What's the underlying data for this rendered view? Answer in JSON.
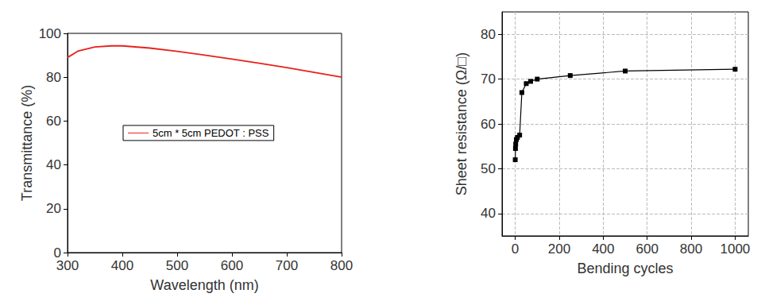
{
  "chart_data": [
    {
      "type": "line",
      "x_label": "Wavelength (nm)",
      "y_label": "Transmittance (%)",
      "xlim": [
        300,
        800
      ],
      "xticks": [
        300,
        400,
        500,
        600,
        700,
        800
      ],
      "ylim": [
        0,
        100
      ],
      "yticks": [
        0,
        20,
        40,
        60,
        80,
        100
      ],
      "grid": false,
      "legend": "center",
      "series": [
        {
          "name": "5cm * 5cm PEDOT : PSS",
          "color": "#e8211b",
          "line_style": "solid",
          "x": [
            300,
            320,
            350,
            380,
            400,
            450,
            500,
            550,
            600,
            650,
            700,
            750,
            800
          ],
          "values": [
            89,
            92,
            93.8,
            94.3,
            94.3,
            93.3,
            91.8,
            90.1,
            88.3,
            86.4,
            84.4,
            82.2,
            80
          ]
        }
      ]
    },
    {
      "type": "line",
      "x_label": "Bending cycles",
      "y_label": "Sheet resistance (Ω/□)",
      "xlim": [
        -60,
        1060
      ],
      "xticks": [
        0,
        200,
        400,
        600,
        800,
        1000
      ],
      "ylim": [
        35,
        85
      ],
      "yticks": [
        40,
        50,
        60,
        70,
        80
      ],
      "grid": true,
      "series": [
        {
          "color": "#000000",
          "marker": "square",
          "line_style": "solid",
          "x": [
            0,
            1,
            2,
            5,
            10,
            20,
            30,
            50,
            70,
            100,
            250,
            500,
            1000
          ],
          "values": [
            52,
            54.5,
            55.5,
            56.5,
            57,
            57.5,
            67,
            69,
            69.5,
            70,
            70.8,
            71.8,
            72.2
          ]
        }
      ]
    }
  ]
}
